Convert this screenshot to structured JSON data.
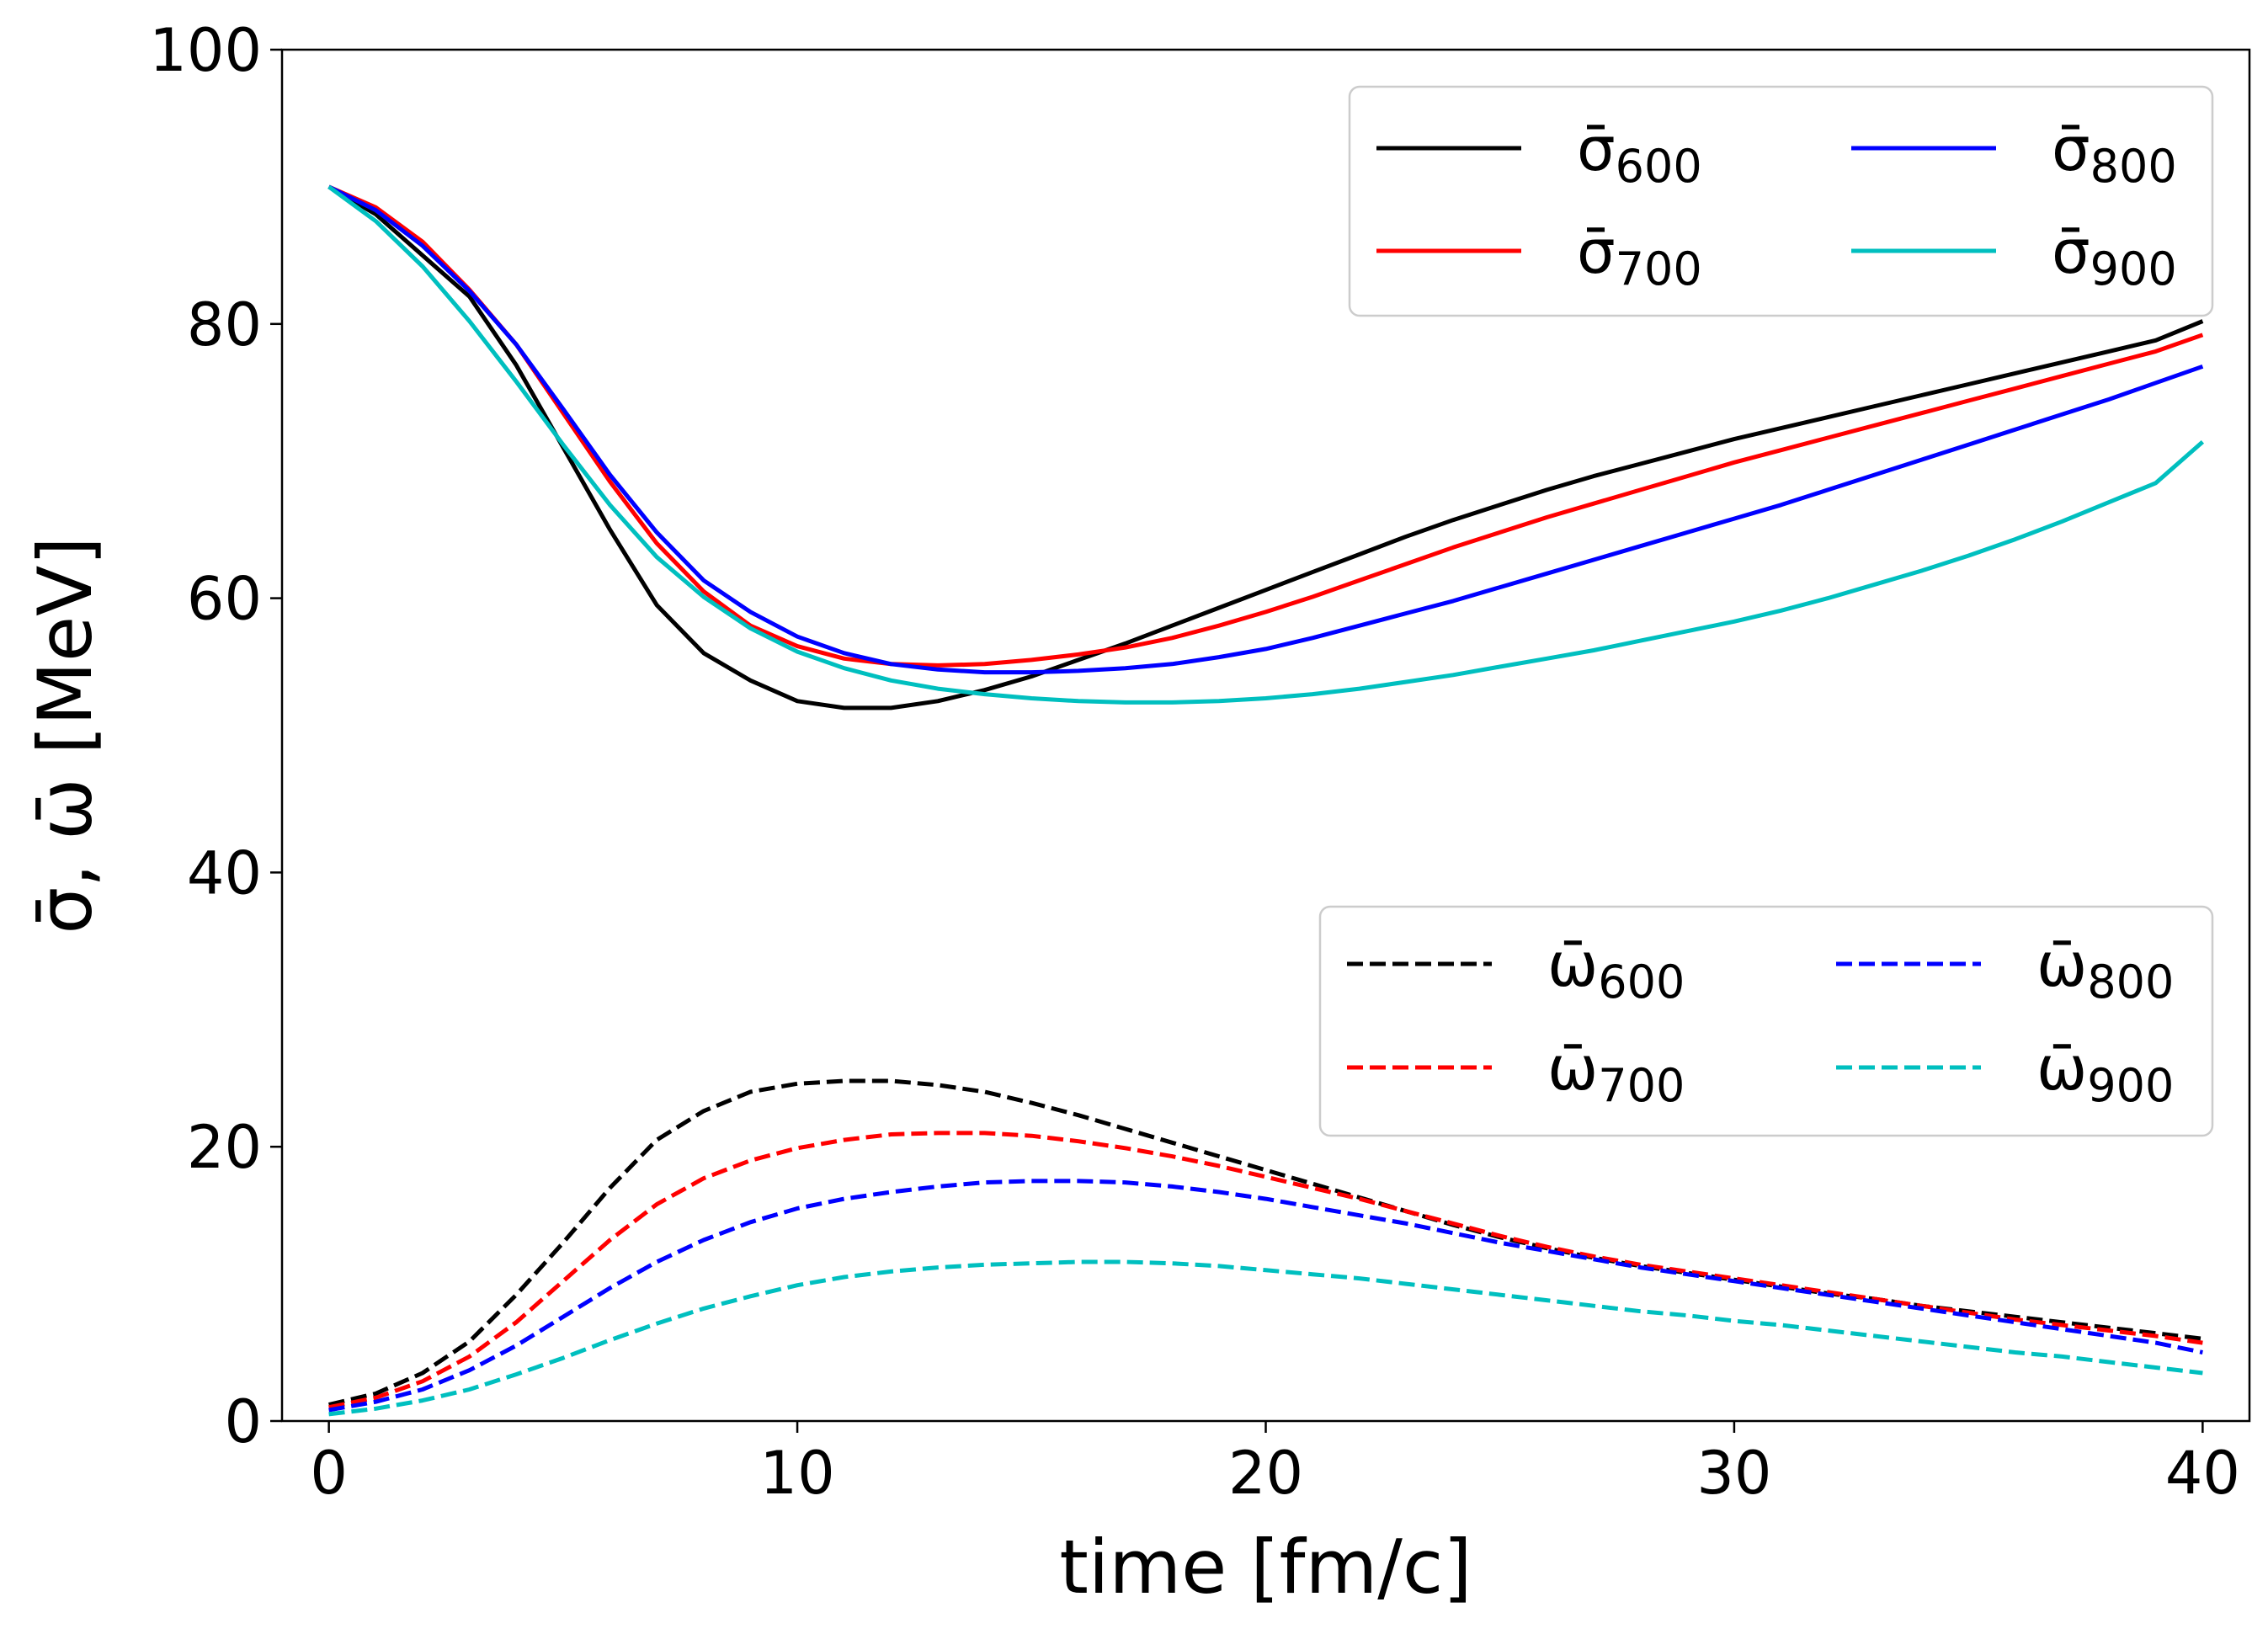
{
  "chart_data": {
    "type": "line",
    "title": "",
    "xlabel": "time [fm/c]",
    "ylabel": "σ̄, ω̄ [MeV]",
    "xlim": [
      -1,
      41
    ],
    "ylim": [
      0,
      100
    ],
    "xticks": [
      0,
      10,
      20,
      30,
      40
    ],
    "yticks": [
      0,
      20,
      40,
      60,
      80,
      100
    ],
    "xtick_labels": [
      "0",
      "10",
      "20",
      "30",
      "40"
    ],
    "ytick_labels": [
      "0",
      "20",
      "40",
      "60",
      "80",
      "100"
    ],
    "grid": false,
    "legends": [
      {
        "placement": "top-right",
        "columns": 2,
        "group": "sigma"
      },
      {
        "placement": "center-right",
        "columns": 2,
        "group": "omega"
      }
    ],
    "x": [
      0,
      1,
      2,
      3,
      4,
      5,
      6,
      7,
      8,
      9,
      10,
      11,
      12,
      13,
      14,
      15,
      16,
      17,
      18,
      19,
      20,
      21,
      22,
      23,
      24,
      25,
      26,
      27,
      28,
      29,
      30,
      31,
      32,
      33,
      34,
      35,
      36,
      37,
      38,
      39,
      40
    ],
    "series": [
      {
        "id": "sigma600",
        "group": "sigma",
        "symbol": "σ̄",
        "subscript": "600",
        "color": "#000000",
        "style": "solid",
        "values": [
          90,
          88,
          85,
          82,
          77,
          71,
          65,
          59.5,
          56,
          54,
          52.5,
          52,
          52,
          52.5,
          53.3,
          54.3,
          55.5,
          56.7,
          58,
          59.3,
          60.6,
          61.9,
          63.2,
          64.5,
          65.7,
          66.8,
          67.9,
          68.9,
          69.8,
          70.7,
          71.6,
          72.4,
          73.2,
          74,
          74.8,
          75.6,
          76.4,
          77.2,
          78,
          78.8,
          80.2
        ]
      },
      {
        "id": "sigma700",
        "group": "sigma",
        "symbol": "σ̄",
        "subscript": "700",
        "color": "#ff0000",
        "style": "solid",
        "values": [
          90,
          88.5,
          86,
          82.5,
          78.5,
          73.5,
          68.5,
          64,
          60.5,
          58,
          56.5,
          55.6,
          55.2,
          55.1,
          55.2,
          55.5,
          55.9,
          56.4,
          57.1,
          58,
          59,
          60.1,
          61.3,
          62.5,
          63.7,
          64.8,
          65.9,
          66.9,
          67.9,
          68.9,
          69.9,
          70.8,
          71.7,
          72.6,
          73.5,
          74.4,
          75.3,
          76.2,
          77.1,
          78,
          79.2
        ]
      },
      {
        "id": "sigma800",
        "group": "sigma",
        "symbol": "σ̄",
        "subscript": "800",
        "color": "#0000ff",
        "style": "solid",
        "values": [
          90,
          88.3,
          85.7,
          82.4,
          78.5,
          73.8,
          69,
          64.8,
          61.3,
          59,
          57.2,
          56,
          55.2,
          54.8,
          54.6,
          54.6,
          54.7,
          54.9,
          55.2,
          55.7,
          56.3,
          57.1,
          58,
          58.9,
          59.8,
          60.8,
          61.8,
          62.8,
          63.8,
          64.8,
          65.8,
          66.8,
          67.9,
          69,
          70.1,
          71.2,
          72.3,
          73.4,
          74.5,
          75.7,
          76.9
        ]
      },
      {
        "id": "sigma900",
        "group": "sigma",
        "symbol": "σ̄",
        "subscript": "900",
        "color": "#00bfbf",
        "style": "solid",
        "values": [
          90,
          87.5,
          84.2,
          80.2,
          75.8,
          71.2,
          66.8,
          63,
          60.1,
          57.8,
          56.1,
          54.9,
          54,
          53.4,
          53,
          52.7,
          52.5,
          52.4,
          52.4,
          52.5,
          52.7,
          53,
          53.4,
          53.9,
          54.4,
          55,
          55.6,
          56.2,
          56.9,
          57.6,
          58.3,
          59.1,
          60,
          61,
          62,
          63.1,
          64.3,
          65.6,
          67,
          68.4,
          71.4
        ]
      },
      {
        "id": "omega600",
        "group": "omega",
        "symbol": "ω̄",
        "subscript": "600",
        "color": "#000000",
        "style": "dashed",
        "values": [
          1.2,
          2,
          3.5,
          5.8,
          9.2,
          13,
          17,
          20.5,
          22.6,
          24,
          24.6,
          24.8,
          24.8,
          24.5,
          24,
          23.2,
          22.3,
          21.3,
          20.3,
          19.3,
          18.3,
          17.3,
          16.3,
          15.3,
          14.3,
          13.4,
          12.6,
          11.9,
          11.3,
          10.8,
          10.3,
          9.8,
          9.3,
          8.9,
          8.4,
          8,
          7.6,
          7.2,
          6.8,
          6.4,
          6
        ]
      },
      {
        "id": "omega700",
        "group": "omega",
        "symbol": "ω̄",
        "subscript": "700",
        "color": "#ff0000",
        "style": "dashed",
        "values": [
          1,
          1.7,
          2.9,
          4.7,
          7.2,
          10.2,
          13.2,
          15.8,
          17.7,
          19,
          19.9,
          20.5,
          20.9,
          21,
          21,
          20.8,
          20.4,
          19.9,
          19.3,
          18.6,
          17.8,
          17,
          16.2,
          15.3,
          14.4,
          13.5,
          12.7,
          12,
          11.4,
          10.9,
          10.4,
          9.9,
          9.4,
          8.9,
          8.4,
          7.9,
          7.4,
          7,
          6.6,
          6.2,
          5.7
        ]
      },
      {
        "id": "omega800",
        "group": "omega",
        "symbol": "ω̄",
        "subscript": "800",
        "color": "#0000ff",
        "style": "dashed",
        "values": [
          0.8,
          1.4,
          2.3,
          3.7,
          5.5,
          7.6,
          9.7,
          11.6,
          13.2,
          14.5,
          15.5,
          16.2,
          16.7,
          17.1,
          17.4,
          17.5,
          17.5,
          17.4,
          17.1,
          16.7,
          16.2,
          15.6,
          15,
          14.4,
          13.7,
          13,
          12.4,
          11.8,
          11.2,
          10.7,
          10.2,
          9.7,
          9.2,
          8.7,
          8.2,
          7.7,
          7.2,
          6.7,
          6.2,
          5.7,
          5
        ]
      },
      {
        "id": "omega900",
        "group": "omega",
        "symbol": "ω̄",
        "subscript": "900",
        "color": "#00bfbf",
        "style": "dashed",
        "values": [
          0.5,
          0.9,
          1.5,
          2.3,
          3.4,
          4.6,
          5.9,
          7.1,
          8.2,
          9.1,
          9.9,
          10.5,
          10.9,
          11.2,
          11.4,
          11.5,
          11.6,
          11.6,
          11.5,
          11.3,
          11,
          10.7,
          10.4,
          10,
          9.6,
          9.2,
          8.8,
          8.4,
          8,
          7.7,
          7.3,
          7,
          6.6,
          6.2,
          5.8,
          5.4,
          5,
          4.7,
          4.3,
          3.9,
          3.5
        ]
      }
    ]
  }
}
